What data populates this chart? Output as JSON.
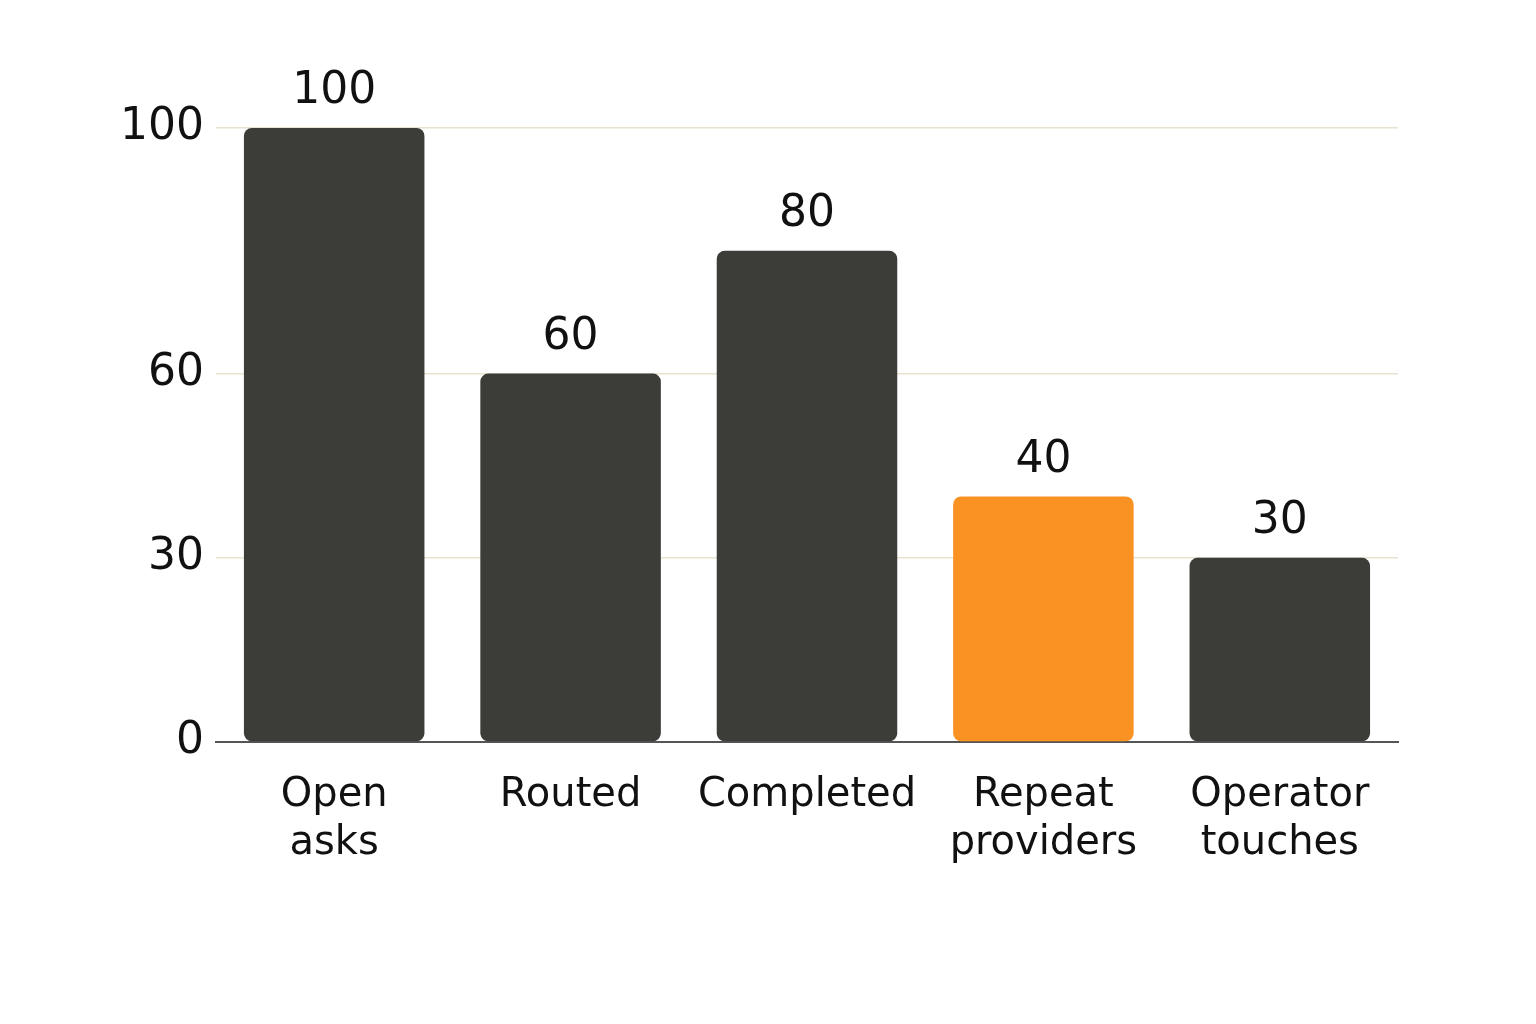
{
  "chart_data": {
    "type": "bar",
    "categories": [
      "Open asks",
      "Routed",
      "Completed",
      "Repeat providers",
      "Operator touches"
    ],
    "values": [
      100,
      60,
      80,
      40,
      30
    ],
    "colors": [
      "#3c3c38",
      "#3c3c38",
      "#3c3c38",
      "#fa9223",
      "#3c3c38"
    ],
    "data_labels": true,
    "ylim": [
      0,
      100
    ],
    "yticks": [
      0,
      30,
      60,
      100
    ],
    "grid": "y",
    "legend": false
  }
}
